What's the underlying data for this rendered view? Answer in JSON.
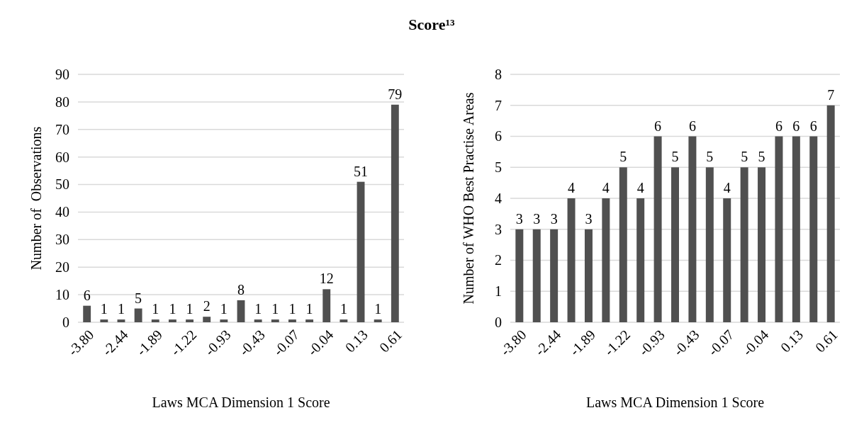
{
  "chart_data": [
    {
      "type": "bar",
      "title": "Score¹³",
      "xlabel": "Laws MCA Dimension 1 Score",
      "ylabel": "Number of  Observations",
      "categories": [
        "-3.80",
        null,
        "-2.44",
        null,
        "-1.89",
        null,
        "-1.22",
        null,
        "-0.93",
        null,
        "-0.43",
        null,
        "-0.07",
        null,
        "-0.04",
        null,
        "0.13",
        null,
        "0.61"
      ],
      "values": [
        6,
        1,
        1,
        5,
        1,
        1,
        1,
        2,
        1,
        8,
        1,
        1,
        1,
        1,
        12,
        1,
        51,
        1,
        79
      ],
      "color": "#505050",
      "ylim": [
        0,
        90
      ],
      "yticks": [
        0,
        10,
        20,
        30,
        40,
        50,
        60,
        70,
        80,
        90
      ],
      "grid": "y",
      "data_labels": true
    },
    {
      "type": "bar",
      "xlabel": "Laws MCA Dimension 1 Score",
      "ylabel": "Number of WHO Best Practise Areas",
      "categories": [
        "-3.80",
        null,
        "-2.44",
        null,
        "-1.89",
        null,
        "-1.22",
        null,
        "-0.93",
        null,
        "-0.43",
        null,
        "-0.07",
        null,
        "-0.04",
        null,
        "0.13",
        null,
        "0.61"
      ],
      "values": [
        3,
        3,
        3,
        4,
        3,
        4,
        5,
        4,
        6,
        5,
        6,
        5,
        4,
        5,
        5,
        6,
        6,
        6,
        7
      ],
      "color": "#505050",
      "ylim": [
        0,
        8
      ],
      "yticks": [
        0,
        1,
        2,
        3,
        4,
        5,
        6,
        7,
        8
      ],
      "grid": "y",
      "data_labels": true
    }
  ]
}
